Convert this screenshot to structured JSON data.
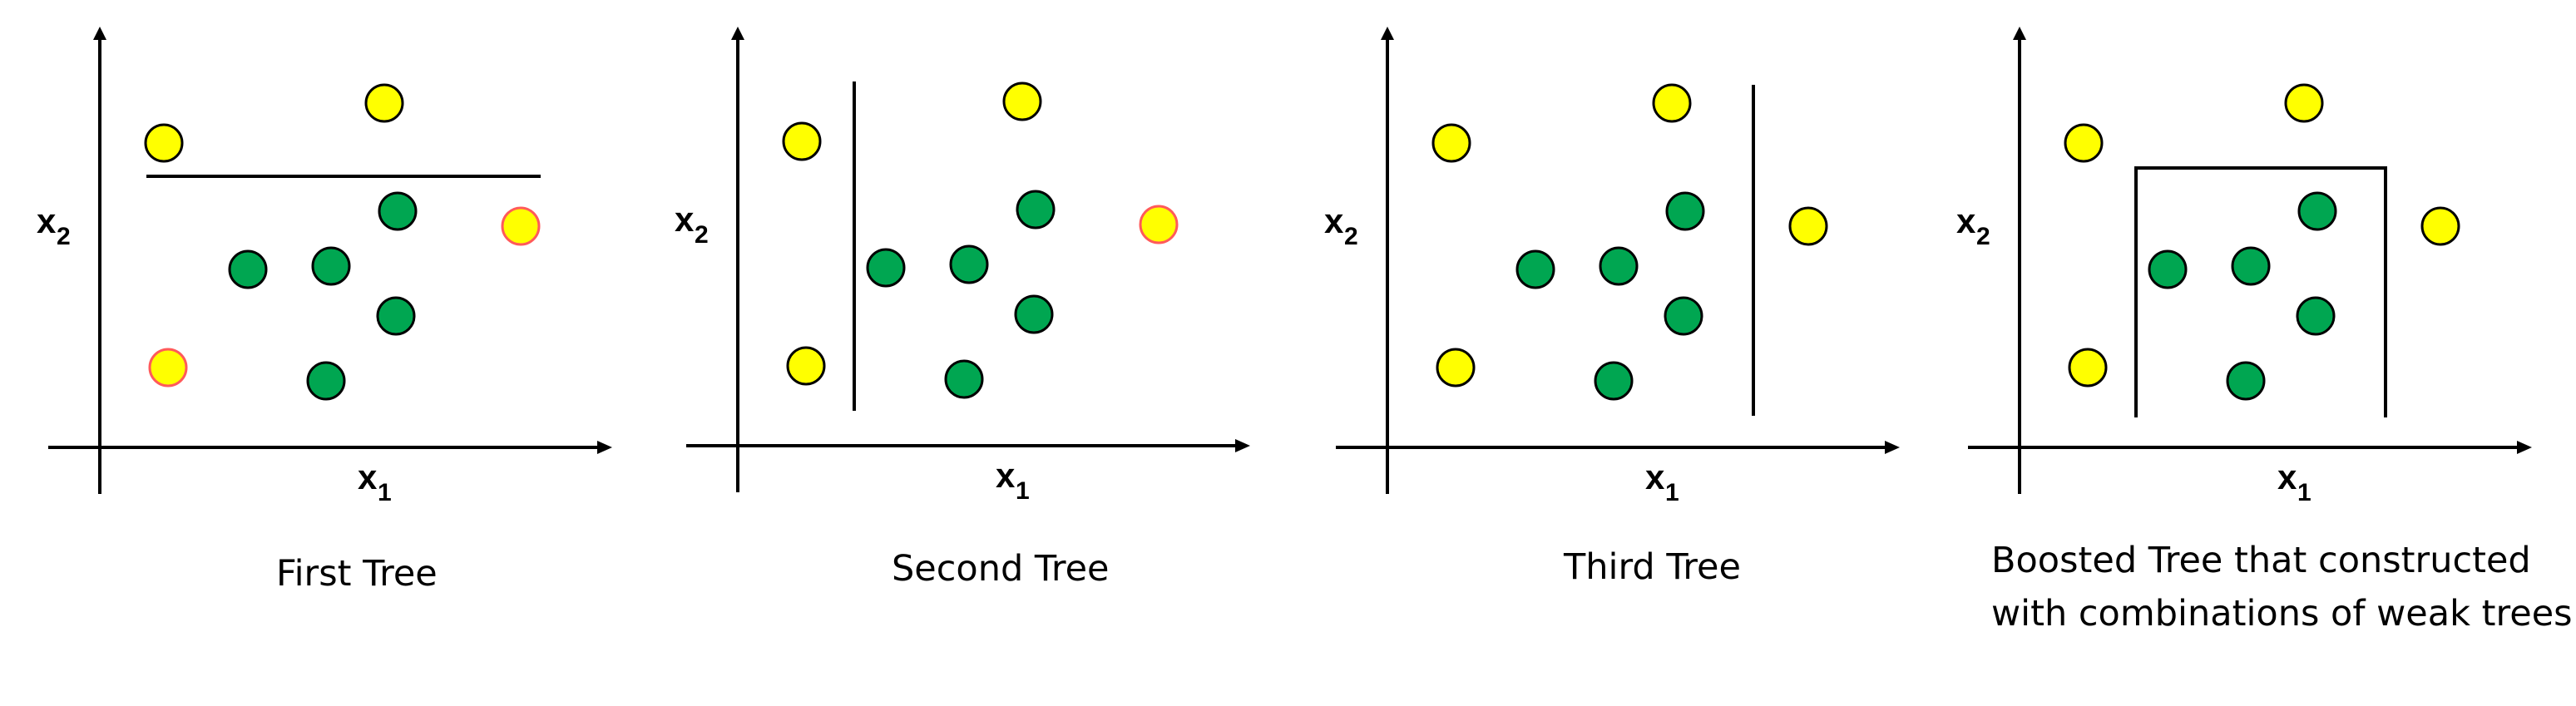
{
  "colors": {
    "green": "#00a651",
    "yellow": "#ffff00",
    "highlight_stroke": "#ff5a5a",
    "line": "#000000"
  },
  "axes": {
    "x_label": "x",
    "x_sub": "1",
    "y_label": "x",
    "y_sub": "2"
  },
  "panels": [
    {
      "caption": "First Tree",
      "split": "horizontal",
      "points": [
        {
          "color": "yellow",
          "highlighted": false
        },
        {
          "color": "yellow",
          "highlighted": false
        },
        {
          "color": "green",
          "highlighted": false
        },
        {
          "color": "yellow",
          "highlighted": true
        },
        {
          "color": "green",
          "highlighted": false
        },
        {
          "color": "green",
          "highlighted": false
        },
        {
          "color": "green",
          "highlighted": false
        },
        {
          "color": "yellow",
          "highlighted": true
        },
        {
          "color": "green",
          "highlighted": false
        }
      ]
    },
    {
      "caption": "Second Tree",
      "split": "vertical-left",
      "points": [
        {
          "color": "yellow",
          "highlighted": false
        },
        {
          "color": "yellow",
          "highlighted": false
        },
        {
          "color": "green",
          "highlighted": false
        },
        {
          "color": "yellow",
          "highlighted": true
        },
        {
          "color": "green",
          "highlighted": false
        },
        {
          "color": "green",
          "highlighted": false
        },
        {
          "color": "green",
          "highlighted": false
        },
        {
          "color": "yellow",
          "highlighted": false
        },
        {
          "color": "green",
          "highlighted": false
        }
      ]
    },
    {
      "caption": "Third Tree",
      "split": "vertical-right",
      "points": [
        {
          "color": "yellow",
          "highlighted": false
        },
        {
          "color": "yellow",
          "highlighted": false
        },
        {
          "color": "green",
          "highlighted": false
        },
        {
          "color": "yellow",
          "highlighted": false
        },
        {
          "color": "green",
          "highlighted": false
        },
        {
          "color": "green",
          "highlighted": false
        },
        {
          "color": "green",
          "highlighted": false
        },
        {
          "color": "yellow",
          "highlighted": false
        },
        {
          "color": "green",
          "highlighted": false
        }
      ]
    },
    {
      "caption": "Boosted Tree that constructed with combinations of weak trees",
      "caption_lines": [
        "Boosted Tree that constructed",
        "with combinations of weak trees"
      ],
      "split": "box",
      "points": [
        {
          "color": "yellow",
          "highlighted": false
        },
        {
          "color": "yellow",
          "highlighted": false
        },
        {
          "color": "green",
          "highlighted": false
        },
        {
          "color": "yellow",
          "highlighted": false
        },
        {
          "color": "green",
          "highlighted": false
        },
        {
          "color": "green",
          "highlighted": false
        },
        {
          "color": "green",
          "highlighted": false
        },
        {
          "color": "yellow",
          "highlighted": false
        },
        {
          "color": "green",
          "highlighted": false
        }
      ]
    }
  ]
}
